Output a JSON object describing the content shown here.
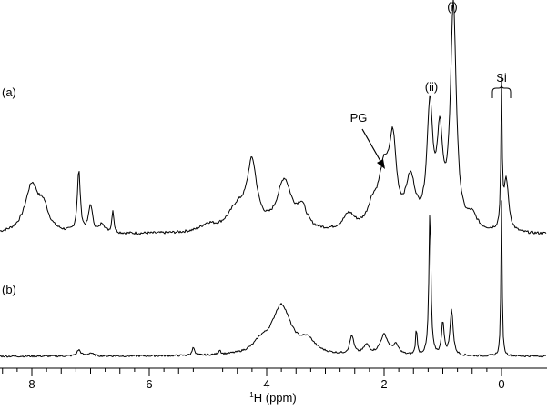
{
  "chart_data": {
    "type": "line",
    "title": "",
    "xlabel_sup": "1",
    "xlabel_main": "H (ppm)",
    "x_reversed": true,
    "xlim": [
      8.5,
      -0.75
    ],
    "x_ticks": [
      "8",
      "6",
      "4",
      "2",
      "0"
    ],
    "grid": false,
    "panels": [
      {
        "label": "(a)",
        "baseline_ppm_offset": 0,
        "annotations": [
          {
            "text": "(i)",
            "ppm": 0.82
          },
          {
            "text": "(ii)",
            "ppm": 1.22
          },
          {
            "text": "Si",
            "ppm": 0.0
          },
          {
            "text": "PG",
            "ppm": 2.0
          }
        ],
        "peaks": [
          {
            "ppm": 8.0,
            "height": 0.21,
            "width": 0.14
          },
          {
            "ppm": 7.8,
            "height": 0.09,
            "width": 0.1
          },
          {
            "ppm": 7.2,
            "height": 0.27,
            "width": 0.03
          },
          {
            "ppm": 7.0,
            "height": 0.12,
            "width": 0.04
          },
          {
            "ppm": 6.8,
            "height": 0.04,
            "width": 0.05
          },
          {
            "ppm": 6.62,
            "height": 0.1,
            "width": 0.02
          },
          {
            "ppm": 5.0,
            "height": 0.03,
            "width": 0.15
          },
          {
            "ppm": 4.5,
            "height": 0.1,
            "width": 0.2
          },
          {
            "ppm": 4.25,
            "height": 0.28,
            "width": 0.1
          },
          {
            "ppm": 3.7,
            "height": 0.22,
            "width": 0.15
          },
          {
            "ppm": 3.4,
            "height": 0.09,
            "width": 0.1
          },
          {
            "ppm": 2.6,
            "height": 0.07,
            "width": 0.12
          },
          {
            "ppm": 2.2,
            "height": 0.08,
            "width": 0.1
          },
          {
            "ppm": 2.0,
            "height": 0.25,
            "width": 0.12
          },
          {
            "ppm": 1.85,
            "height": 0.33,
            "width": 0.07
          },
          {
            "ppm": 1.55,
            "height": 0.21,
            "width": 0.1
          },
          {
            "ppm": 1.22,
            "height": 0.52,
            "width": 0.06
          },
          {
            "ppm": 1.05,
            "height": 0.38,
            "width": 0.06
          },
          {
            "ppm": 0.82,
            "height": 0.98,
            "width": 0.06
          },
          {
            "ppm": 0.5,
            "height": 0.06,
            "width": 0.1
          },
          {
            "ppm": 0.0,
            "height": 0.62,
            "width": 0.012
          },
          {
            "ppm": -0.08,
            "height": 0.23,
            "width": 0.05
          }
        ]
      },
      {
        "label": "(b)",
        "annotations": [],
        "peaks": [
          {
            "ppm": 7.2,
            "height": 0.04,
            "width": 0.04
          },
          {
            "ppm": 7.0,
            "height": 0.02,
            "width": 0.05
          },
          {
            "ppm": 5.25,
            "height": 0.06,
            "width": 0.02
          },
          {
            "ppm": 4.8,
            "height": 0.03,
            "width": 0.02
          },
          {
            "ppm": 4.1,
            "height": 0.06,
            "width": 0.15
          },
          {
            "ppm": 3.75,
            "height": 0.32,
            "width": 0.2
          },
          {
            "ppm": 3.3,
            "height": 0.08,
            "width": 0.15
          },
          {
            "ppm": 2.55,
            "height": 0.12,
            "width": 0.04
          },
          {
            "ppm": 2.3,
            "height": 0.06,
            "width": 0.06
          },
          {
            "ppm": 2.0,
            "height": 0.13,
            "width": 0.08
          },
          {
            "ppm": 1.8,
            "height": 0.06,
            "width": 0.06
          },
          {
            "ppm": 1.45,
            "height": 0.18,
            "width": 0.015
          },
          {
            "ppm": 1.22,
            "height": 0.95,
            "width": 0.02
          },
          {
            "ppm": 1.0,
            "height": 0.22,
            "width": 0.025
          },
          {
            "ppm": 0.85,
            "height": 0.3,
            "width": 0.03
          },
          {
            "ppm": 0.0,
            "height": 1.0,
            "width": 0.012
          }
        ]
      }
    ]
  }
}
